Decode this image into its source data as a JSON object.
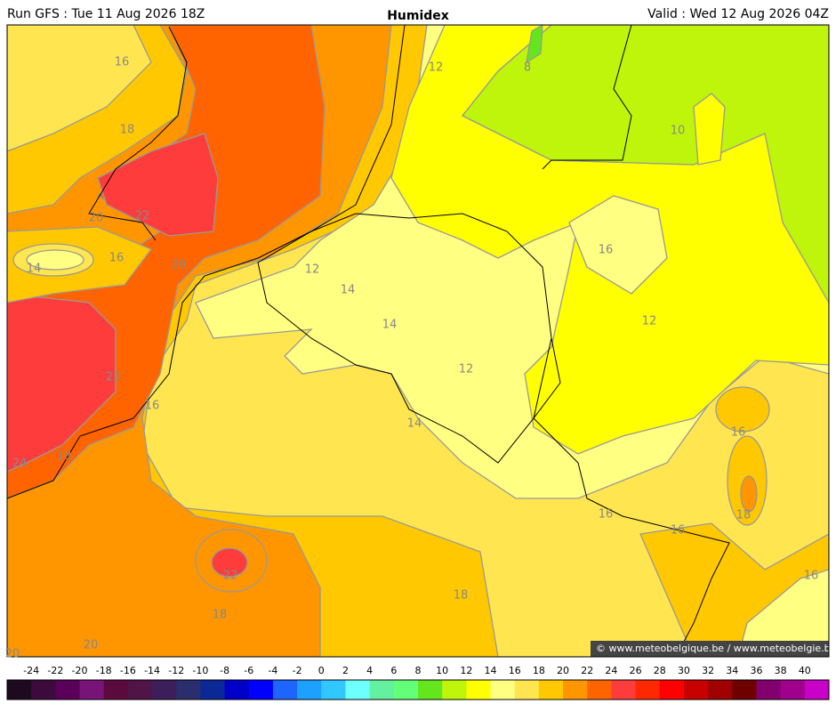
{
  "header": {
    "run": "Run GFS : Tue 11 Aug 2026 18Z",
    "title": "Humidex",
    "valid": "Valid : Wed 12 Aug 2026 04Z"
  },
  "credit": "© www.meteobelgique.be / www.meteobelgie.be",
  "contour_labels": [
    16,
    18,
    20,
    22,
    14,
    16,
    20,
    12,
    8,
    10,
    12,
    14,
    14,
    16,
    12,
    12,
    22,
    16,
    14,
    24,
    18,
    16,
    16,
    18,
    16,
    16,
    22,
    18,
    18,
    20,
    20
  ],
  "legend": {
    "ticks": [
      -24,
      -22,
      -20,
      -18,
      -16,
      -14,
      -12,
      -10,
      -8,
      -6,
      -4,
      -2,
      0,
      2,
      4,
      6,
      8,
      10,
      12,
      14,
      16,
      18,
      20,
      22,
      24,
      26,
      28,
      30,
      32,
      34,
      36,
      38,
      40
    ],
    "colors": [
      "#1e0a1e",
      "#3c0a3c",
      "#5a005a",
      "#781478",
      "#5a0a3c",
      "#501446",
      "#3c1e5a",
      "#2a2e6e",
      "#0a2896",
      "#0000c8",
      "#0000ff",
      "#1e64ff",
      "#1ea0ff",
      "#32c8ff",
      "#6effff",
      "#64f0a0",
      "#64ff78",
      "#64e61e",
      "#bef50a",
      "#ffff00",
      "#ffff82",
      "#ffe650",
      "#ffc800",
      "#ff9600",
      "#ff6400",
      "#ff3c3c",
      "#ff2800",
      "#ff0000",
      "#c80000",
      "#a00000",
      "#6e0000",
      "#82006e",
      "#a0008c",
      "#c800c8"
    ]
  }
}
